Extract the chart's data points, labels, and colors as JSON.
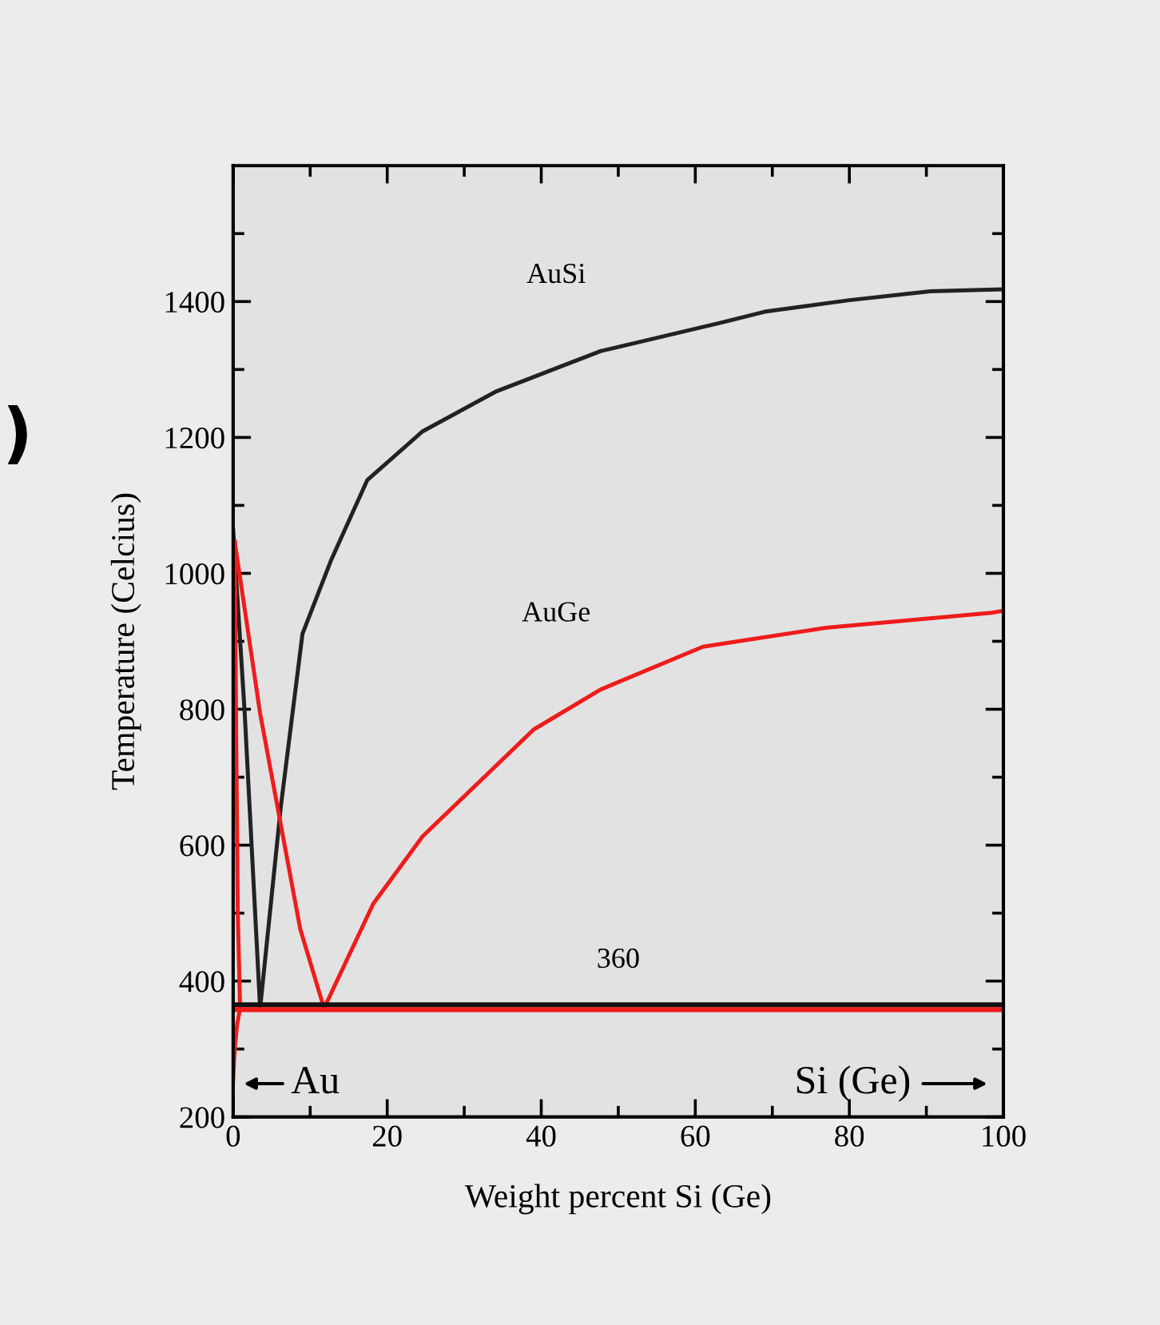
{
  "chart_data": {
    "type": "line",
    "xlabel": "Weight percent Si (Ge)",
    "ylabel": "Temperature (Celcius)",
    "xlim": [
      0,
      100
    ],
    "ylim": [
      200,
      1600
    ],
    "xticks": [
      0,
      20,
      40,
      60,
      80,
      100
    ],
    "yticks": [
      200,
      400,
      600,
      800,
      1000,
      1200,
      1400
    ],
    "grid": false,
    "marker": "none",
    "line_style": "solid",
    "series": [
      {
        "name": "AuSi",
        "color": "#222222",
        "x": [
          0,
          1.5,
          3.5,
          6.2,
          9.0,
          12.7,
          17.4,
          24.6,
          34.2,
          47.7,
          63.4,
          69,
          80,
          90.5,
          100
        ],
        "values": [
          1064,
          794,
          360,
          658,
          911,
          1019,
          1137,
          1209,
          1268,
          1327,
          1369,
          1385,
          1402,
          1415,
          1418
        ]
      },
      {
        "name": "AuGe",
        "color": "#ee1c1c",
        "x": [
          0.2,
          3.5,
          8.7,
          11.8,
          18.2,
          24.6,
          39,
          47.7,
          61,
          77,
          98.5,
          100
        ],
        "values": [
          1047,
          794,
          477,
          360,
          514,
          613,
          770,
          829,
          892,
          920,
          942,
          945
        ]
      },
      {
        "color": "#ee1c1c",
        "x": [
          0.2,
          0.4,
          0.6,
          0.9,
          0.5,
          0.2,
          0
        ],
        "values": [
          1047,
          750,
          500,
          360,
          335,
          300,
          255
        ]
      }
    ],
    "ref_lines": [
      {
        "axis": "y",
        "value": 365,
        "color": "#111111"
      },
      {
        "axis": "y",
        "value": 358,
        "color": "#ee1c1c"
      }
    ],
    "annotations": [
      {
        "text": "360",
        "x": 50,
        "y": 365
      },
      "Au",
      "Si (Ge)",
      ")"
    ]
  }
}
